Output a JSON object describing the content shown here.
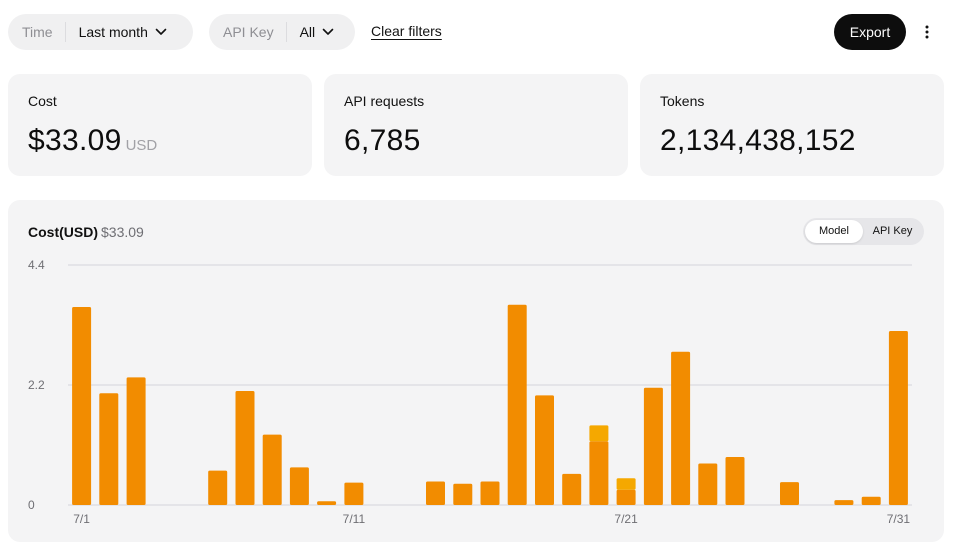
{
  "filters": {
    "time": {
      "label": "Time",
      "value": "Last month"
    },
    "api_key": {
      "label": "API Key",
      "value": "All"
    },
    "clear_label": "Clear filters"
  },
  "actions": {
    "export_label": "Export",
    "more_icon": "more-vertical-icon"
  },
  "metrics": {
    "cost": {
      "label": "Cost",
      "value": "$33.09",
      "unit": "USD"
    },
    "requests": {
      "label": "API requests",
      "value": "6,785"
    },
    "tokens": {
      "label": "Tokens",
      "value": "2,134,438,152"
    }
  },
  "chart_panel": {
    "title": "Cost(USD)",
    "total": "$33.09",
    "toggle": {
      "options": [
        "Model",
        "API Key"
      ],
      "selected": "Model"
    }
  },
  "colors": {
    "primary_bar": "#f28c00",
    "secondary_bar": "#f5a800",
    "grid": "#d5d5da"
  },
  "chart_data": {
    "type": "bar",
    "stacked": true,
    "categories": [
      "7/1",
      "7/2",
      "7/3",
      "7/4",
      "7/5",
      "7/6",
      "7/7",
      "7/8",
      "7/9",
      "7/10",
      "7/11",
      "7/12",
      "7/13",
      "7/14",
      "7/15",
      "7/16",
      "7/17",
      "7/18",
      "7/19",
      "7/20",
      "7/21",
      "7/22",
      "7/23",
      "7/24",
      "7/25",
      "7/26",
      "7/27",
      "7/28",
      "7/29",
      "7/30",
      "7/31"
    ],
    "x_tick_labels": [
      "7/1",
      "7/11",
      "7/21",
      "7/31"
    ],
    "y_ticks": [
      0,
      2.2,
      4.4
    ],
    "ylim": [
      0,
      4.4
    ],
    "grid": true,
    "series": [
      {
        "values": [
          3.63,
          2.05,
          2.34,
          0,
          0,
          0.63,
          2.09,
          1.29,
          0.69,
          0.07,
          0.41,
          0,
          0,
          0.43,
          0.39,
          0.43,
          3.67,
          2.01,
          0.57,
          1.17,
          0.28,
          2.15,
          2.81,
          0.76,
          0.88,
          0,
          0.42,
          0,
          0.09,
          0.15,
          3.19
        ]
      },
      {
        "values": [
          0,
          0,
          0,
          0,
          0,
          0,
          0,
          0,
          0,
          0,
          0,
          0,
          0,
          0,
          0,
          0,
          0,
          0,
          0,
          0.29,
          0.21,
          0,
          0,
          0,
          0,
          0,
          0,
          0,
          0,
          0,
          0
        ]
      }
    ]
  }
}
